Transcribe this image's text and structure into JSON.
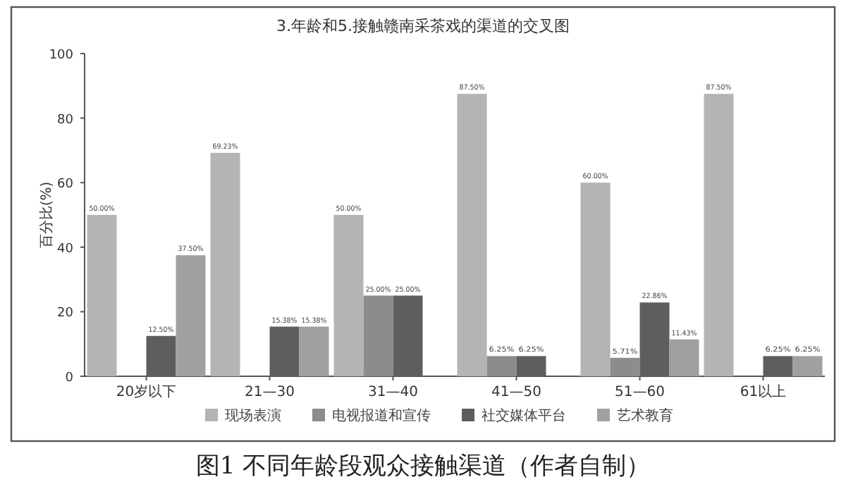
{
  "chart_data": {
    "type": "bar",
    "title": "3.年龄和5.接触赣南采茶戏的渠道的交叉图",
    "ylabel": "百分比(%)",
    "categories": [
      "20岁以下",
      "21—30",
      "31—40",
      "41—50",
      "51—60",
      "61以上"
    ],
    "series": [
      {
        "name": "现场表演",
        "color": "#b4b4b4",
        "values": [
          50,
          69.23,
          50,
          87.5,
          60,
          87.5
        ],
        "value_labels": [
          "50.00%",
          "69.23%",
          "50.00%",
          "87.50%",
          "60.00%",
          "87.50%"
        ]
      },
      {
        "name": "电视报道和宣传",
        "color": "#8c8c8c",
        "values": [
          null,
          null,
          25,
          6.25,
          5.71,
          null
        ],
        "value_labels": [
          null,
          null,
          "25.00%",
          "6.25%",
          "5.71%",
          null
        ]
      },
      {
        "name": "社交媒体平台",
        "color": "#5e5e5e",
        "values": [
          12.5,
          15.38,
          25,
          6.25,
          22.86,
          6.25
        ],
        "value_labels": [
          "12.50%",
          "15.38%",
          "25.00%",
          "6.25%",
          "22.86%",
          "6.25%"
        ]
      },
      {
        "name": "艺术教育",
        "color": "#a0a0a0",
        "values": [
          37.5,
          15.38,
          null,
          null,
          11.43,
          6.25
        ],
        "value_labels": [
          "37.50%",
          "15.38%",
          null,
          null,
          "11.43%",
          "6.25%"
        ]
      }
    ],
    "ylim": [
      0,
      100
    ],
    "yticks": [
      0,
      20,
      40,
      60,
      80,
      100
    ],
    "grid": false,
    "legend": "bottom",
    "annotations": [
      "图1 不同年龄段观众接触渠道（作者自制）"
    ]
  }
}
